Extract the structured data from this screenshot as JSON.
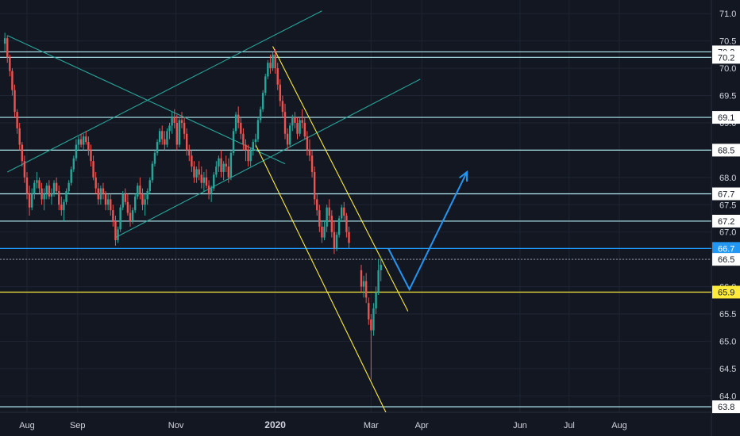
{
  "chart_data": {
    "type": "candlestick",
    "y_axis": {
      "ylim": [
        63.7,
        71.25
      ],
      "ticks": [
        64.0,
        64.5,
        65.0,
        65.5,
        66.0,
        66.5,
        67.0,
        67.5,
        68.0,
        68.5,
        69.0,
        69.5,
        70.0,
        70.5,
        71.0
      ],
      "tick_labels": [
        "64.0",
        "64.5",
        "65.0",
        "65.5",
        "66.0",
        "66.5",
        "67.0",
        "67.5",
        "68.0",
        "68.5",
        "69.0",
        "69.5",
        "70.0",
        "70.5",
        "71.0"
      ],
      "position": "right"
    },
    "x_axis": {
      "labels": [
        {
          "text": "Aug",
          "t": 0.0,
          "bold": false
        },
        {
          "text": "Sep",
          "t": 1.03,
          "bold": false
        },
        {
          "text": "Nov",
          "t": 3.03,
          "bold": false
        },
        {
          "text": "2020",
          "t": 5.05,
          "bold": true
        },
        {
          "text": "Mar",
          "t": 7.0,
          "bold": false
        },
        {
          "text": "Apr",
          "t": 8.03,
          "bold": false
        },
        {
          "text": "Jun",
          "t": 10.03,
          "bold": false
        },
        {
          "text": "Jul",
          "t": 11.03,
          "bold": false
        },
        {
          "text": "Aug",
          "t": 12.05,
          "bold": false
        }
      ]
    },
    "price_levels": [
      {
        "value": 70.3,
        "label": "70.3",
        "color": "#b2ebf2",
        "badge_bg": "#ffffff",
        "badge_fg": "#131722"
      },
      {
        "value": 70.2,
        "label": "70.2",
        "color": "#b2ebf2",
        "badge_bg": "#ffffff",
        "badge_fg": "#131722"
      },
      {
        "value": 69.1,
        "label": "69.1",
        "color": "#b2ebf2",
        "badge_bg": "#ffffff",
        "badge_fg": "#131722"
      },
      {
        "value": 68.5,
        "label": "68.5",
        "color": "#b2ebf2",
        "badge_bg": "#ffffff",
        "badge_fg": "#131722"
      },
      {
        "value": 67.7,
        "label": "67.7",
        "color": "#b2ebf2",
        "badge_bg": "#ffffff",
        "badge_fg": "#131722"
      },
      {
        "value": 67.2,
        "label": "67.2",
        "color": "#b2ebf2",
        "badge_bg": "#ffffff",
        "badge_fg": "#131722"
      },
      {
        "value": 66.7,
        "label": "66.7",
        "color": "#2196f3",
        "badge_bg": "#2196f3",
        "badge_fg": "#ffffff"
      },
      {
        "value": 66.5,
        "label": "66.5",
        "color": "#787b86",
        "badge_bg": "#ffffff",
        "badge_fg": "#131722",
        "dashed": true
      },
      {
        "value": 65.9,
        "label": "65.9",
        "color": "#ffeb3b",
        "badge_bg": "#ffeb3b",
        "badge_fg": "#131722"
      },
      {
        "value": 63.8,
        "label": "63.8",
        "color": "#b2ebf2",
        "badge_bg": "#ffffff",
        "badge_fg": "#131722"
      }
    ],
    "trend_lines": [
      {
        "name": "teal-channel-upper",
        "color": "#26a69a",
        "from": {
          "t": -0.4,
          "y": 68.1
        },
        "to": {
          "t": 6.0,
          "y": 71.05
        }
      },
      {
        "name": "teal-channel-lower",
        "color": "#26a69a",
        "from": {
          "t": 1.8,
          "y": 66.9
        },
        "to": {
          "t": 8.0,
          "y": 69.8
        }
      },
      {
        "name": "teal-descending",
        "color": "#26a69a",
        "from": {
          "t": -0.4,
          "y": 70.6
        },
        "to": {
          "t": 5.25,
          "y": 68.25
        }
      },
      {
        "name": "yellow-channel-upper",
        "color": "#ffeb3b",
        "from": {
          "t": 5.0,
          "y": 70.4
        },
        "to": {
          "t": 7.75,
          "y": 65.55
        }
      },
      {
        "name": "yellow-channel-lower",
        "color": "#ffeb3b",
        "from": {
          "t": 4.65,
          "y": 68.6
        },
        "to": {
          "t": 7.3,
          "y": 63.7
        }
      }
    ],
    "projection_arrow": {
      "color": "#2196f3",
      "points": [
        {
          "t": 7.35,
          "y": 66.7
        },
        {
          "t": 7.78,
          "y": 65.95
        },
        {
          "t": 8.95,
          "y": 68.1
        }
      ]
    },
    "candles": [
      [
        -0.45,
        70.45,
        70.65,
        70.3,
        70.55
      ],
      [
        -0.4,
        70.55,
        70.6,
        70.1,
        70.2
      ],
      [
        -0.35,
        70.2,
        70.25,
        69.85,
        69.95
      ],
      [
        -0.3,
        69.95,
        70.0,
        69.5,
        69.6
      ],
      [
        -0.25,
        69.6,
        69.7,
        69.1,
        69.2
      ],
      [
        -0.2,
        69.2,
        69.25,
        68.8,
        68.9
      ],
      [
        -0.15,
        68.9,
        69.0,
        68.5,
        68.6
      ],
      [
        -0.1,
        68.6,
        68.65,
        68.2,
        68.3
      ],
      [
        -0.05,
        68.3,
        68.4,
        67.9,
        68.0
      ],
      [
        0.0,
        68.0,
        68.1,
        67.6,
        67.7
      ],
      [
        0.05,
        67.7,
        67.85,
        67.3,
        67.45
      ],
      [
        0.1,
        67.45,
        67.8,
        67.4,
        67.7
      ],
      [
        0.15,
        67.7,
        67.95,
        67.6,
        67.9
      ],
      [
        0.2,
        67.9,
        68.1,
        67.8,
        67.95
      ],
      [
        0.25,
        67.95,
        68.0,
        67.7,
        67.8
      ],
      [
        0.3,
        67.8,
        67.9,
        67.5,
        67.6
      ],
      [
        0.35,
        67.6,
        67.8,
        67.4,
        67.7
      ],
      [
        0.4,
        67.7,
        67.9,
        67.6,
        67.85
      ],
      [
        0.45,
        67.85,
        67.95,
        67.6,
        67.65
      ],
      [
        0.5,
        67.65,
        67.8,
        67.5,
        67.7
      ],
      [
        0.55,
        67.7,
        67.95,
        67.65,
        67.9
      ],
      [
        0.6,
        67.9,
        68.0,
        67.7,
        67.75
      ],
      [
        0.65,
        67.75,
        67.85,
        67.4,
        67.5
      ],
      [
        0.7,
        67.5,
        67.65,
        67.3,
        67.4
      ],
      [
        0.75,
        67.4,
        67.6,
        67.2,
        67.55
      ],
      [
        0.8,
        67.55,
        67.8,
        67.5,
        67.75
      ],
      [
        0.85,
        67.75,
        67.95,
        67.7,
        67.9
      ],
      [
        0.9,
        67.9,
        68.2,
        67.85,
        68.15
      ],
      [
        0.95,
        68.15,
        68.4,
        68.1,
        68.35
      ],
      [
        1.0,
        68.35,
        68.7,
        68.3,
        68.6
      ],
      [
        1.05,
        68.6,
        68.75,
        68.5,
        68.7
      ],
      [
        1.1,
        68.7,
        68.8,
        68.55,
        68.6
      ],
      [
        1.15,
        68.6,
        68.8,
        68.5,
        68.75
      ],
      [
        1.2,
        68.75,
        68.85,
        68.6,
        68.65
      ],
      [
        1.25,
        68.65,
        68.75,
        68.4,
        68.5
      ],
      [
        1.3,
        68.5,
        68.6,
        68.2,
        68.3
      ],
      [
        1.35,
        68.3,
        68.4,
        67.95,
        68.0
      ],
      [
        1.4,
        68.0,
        68.1,
        67.7,
        67.8
      ],
      [
        1.45,
        67.8,
        67.9,
        67.5,
        67.6
      ],
      [
        1.5,
        67.6,
        67.85,
        67.5,
        67.8
      ],
      [
        1.55,
        67.8,
        67.9,
        67.6,
        67.7
      ],
      [
        1.6,
        67.7,
        67.75,
        67.4,
        67.5
      ],
      [
        1.65,
        67.5,
        67.7,
        67.4,
        67.6
      ],
      [
        1.7,
        67.6,
        67.7,
        67.3,
        67.4
      ],
      [
        1.75,
        67.4,
        67.5,
        67.1,
        67.2
      ],
      [
        1.8,
        67.2,
        67.3,
        66.75,
        66.85
      ],
      [
        1.85,
        66.85,
        67.1,
        66.8,
        67.05
      ],
      [
        1.9,
        67.05,
        67.5,
        67.0,
        67.45
      ],
      [
        1.95,
        67.45,
        67.75,
        67.4,
        67.7
      ],
      [
        2.0,
        67.7,
        67.8,
        67.5,
        67.55
      ],
      [
        2.05,
        67.55,
        67.7,
        67.3,
        67.35
      ],
      [
        2.1,
        67.35,
        67.5,
        67.1,
        67.2
      ],
      [
        2.15,
        67.2,
        67.45,
        67.15,
        67.4
      ],
      [
        2.2,
        67.4,
        67.7,
        67.35,
        67.65
      ],
      [
        2.25,
        67.65,
        67.9,
        67.6,
        67.85
      ],
      [
        2.3,
        67.85,
        68.0,
        67.6,
        67.7
      ],
      [
        2.35,
        67.7,
        67.8,
        67.4,
        67.5
      ],
      [
        2.4,
        67.5,
        67.7,
        67.3,
        67.6
      ],
      [
        2.45,
        67.6,
        67.8,
        67.5,
        67.75
      ],
      [
        2.5,
        67.75,
        68.0,
        67.7,
        67.95
      ],
      [
        2.55,
        67.95,
        68.3,
        67.9,
        68.25
      ],
      [
        2.6,
        68.25,
        68.5,
        68.2,
        68.45
      ],
      [
        2.65,
        68.45,
        68.7,
        68.4,
        68.65
      ],
      [
        2.7,
        68.65,
        68.9,
        68.6,
        68.85
      ],
      [
        2.75,
        68.85,
        68.95,
        68.6,
        68.7
      ],
      [
        2.8,
        68.7,
        68.85,
        68.5,
        68.6
      ],
      [
        2.85,
        68.6,
        68.9,
        68.55,
        68.85
      ],
      [
        2.9,
        68.85,
        69.0,
        68.7,
        68.95
      ],
      [
        2.95,
        68.95,
        69.2,
        68.8,
        69.1
      ],
      [
        3.0,
        69.1,
        69.25,
        68.9,
        69.0
      ],
      [
        3.05,
        69.0,
        69.15,
        68.5,
        68.6
      ],
      [
        3.1,
        68.6,
        69.1,
        68.55,
        69.05
      ],
      [
        3.15,
        69.05,
        69.2,
        68.9,
        69.0
      ],
      [
        3.2,
        69.0,
        69.1,
        68.7,
        68.8
      ],
      [
        3.25,
        68.8,
        68.9,
        68.4,
        68.5
      ],
      [
        3.3,
        68.5,
        68.6,
        68.3,
        68.4
      ],
      [
        3.35,
        68.4,
        68.5,
        68.1,
        68.2
      ],
      [
        3.4,
        68.2,
        68.3,
        67.9,
        68.0
      ],
      [
        3.45,
        68.0,
        68.2,
        67.9,
        68.15
      ],
      [
        3.5,
        68.15,
        68.3,
        67.95,
        68.05
      ],
      [
        3.55,
        68.05,
        68.2,
        67.8,
        67.9
      ],
      [
        3.6,
        67.9,
        68.1,
        67.75,
        68.0
      ],
      [
        3.65,
        68.0,
        68.15,
        67.8,
        67.85
      ],
      [
        3.7,
        67.85,
        67.95,
        67.6,
        67.7
      ],
      [
        3.75,
        67.7,
        67.85,
        67.55,
        67.8
      ],
      [
        3.8,
        67.8,
        68.1,
        67.75,
        68.05
      ],
      [
        3.85,
        68.05,
        68.3,
        68.0,
        68.2
      ],
      [
        3.9,
        68.2,
        68.4,
        68.1,
        68.35
      ],
      [
        3.95,
        68.35,
        68.5,
        68.0,
        68.1
      ],
      [
        4.0,
        68.1,
        68.3,
        67.95,
        68.25
      ],
      [
        4.05,
        68.25,
        68.4,
        68.1,
        68.2
      ],
      [
        4.1,
        68.2,
        68.35,
        67.9,
        68.0
      ],
      [
        4.15,
        68.0,
        68.5,
        67.95,
        68.45
      ],
      [
        4.2,
        68.45,
        68.9,
        68.4,
        68.85
      ],
      [
        4.25,
        68.85,
        69.2,
        68.8,
        69.15
      ],
      [
        4.3,
        69.15,
        69.3,
        68.9,
        69.0
      ],
      [
        4.35,
        69.0,
        69.1,
        68.7,
        68.8
      ],
      [
        4.4,
        68.8,
        68.9,
        68.5,
        68.6
      ],
      [
        4.45,
        68.6,
        68.7,
        68.3,
        68.5
      ],
      [
        4.5,
        68.5,
        68.6,
        68.2,
        68.3
      ],
      [
        4.55,
        68.3,
        68.55,
        68.2,
        68.5
      ],
      [
        4.6,
        68.5,
        68.7,
        68.4,
        68.65
      ],
      [
        4.65,
        68.65,
        68.8,
        68.55,
        68.7
      ],
      [
        4.7,
        68.7,
        69.1,
        68.65,
        69.05
      ],
      [
        4.75,
        69.05,
        69.3,
        69.0,
        69.25
      ],
      [
        4.8,
        69.25,
        69.6,
        69.2,
        69.55
      ],
      [
        4.85,
        69.55,
        69.9,
        69.5,
        69.85
      ],
      [
        4.9,
        69.85,
        70.15,
        69.8,
        70.1
      ],
      [
        4.95,
        70.1,
        70.25,
        69.9,
        70.0
      ],
      [
        5.0,
        70.0,
        70.3,
        69.95,
        70.25
      ],
      [
        5.05,
        70.25,
        70.35,
        69.9,
        70.0
      ],
      [
        5.1,
        70.0,
        70.1,
        69.6,
        69.7
      ],
      [
        5.15,
        69.7,
        69.8,
        69.3,
        69.4
      ],
      [
        5.2,
        69.4,
        69.5,
        69.1,
        69.2
      ],
      [
        5.25,
        69.2,
        69.35,
        68.7,
        68.8
      ],
      [
        5.3,
        68.8,
        68.9,
        68.5,
        68.6
      ],
      [
        5.35,
        68.6,
        69.0,
        68.55,
        68.95
      ],
      [
        5.4,
        68.95,
        69.15,
        68.85,
        69.1
      ],
      [
        5.45,
        69.1,
        69.2,
        68.9,
        69.0
      ],
      [
        5.5,
        69.0,
        69.1,
        68.7,
        68.8
      ],
      [
        5.55,
        68.8,
        69.1,
        68.75,
        69.05
      ],
      [
        5.6,
        69.05,
        69.25,
        68.9,
        69.0
      ],
      [
        5.65,
        69.0,
        69.1,
        68.7,
        68.75
      ],
      [
        5.7,
        68.75,
        68.85,
        68.4,
        68.5
      ],
      [
        5.75,
        68.5,
        68.7,
        68.3,
        68.4
      ],
      [
        5.8,
        68.4,
        68.5,
        68.0,
        68.1
      ],
      [
        5.85,
        68.1,
        68.2,
        67.5,
        67.6
      ],
      [
        5.9,
        67.6,
        67.7,
        67.3,
        67.4
      ],
      [
        5.95,
        67.4,
        67.5,
        67.0,
        67.1
      ],
      [
        6.0,
        67.1,
        67.2,
        66.8,
        66.9
      ],
      [
        6.05,
        66.9,
        67.2,
        66.85,
        67.1
      ],
      [
        6.1,
        67.1,
        67.5,
        67.0,
        67.45
      ],
      [
        6.15,
        67.45,
        67.6,
        67.2,
        67.3
      ],
      [
        6.2,
        67.3,
        67.4,
        66.9,
        67.0
      ],
      [
        6.25,
        67.0,
        67.2,
        66.6,
        66.7
      ],
      [
        6.3,
        66.7,
        67.0,
        66.65,
        66.95
      ],
      [
        6.35,
        66.95,
        67.3,
        66.9,
        67.25
      ],
      [
        6.4,
        67.25,
        67.5,
        67.2,
        67.45
      ],
      [
        6.45,
        67.45,
        67.55,
        67.2,
        67.3
      ],
      [
        6.5,
        67.3,
        67.35,
        66.9,
        67.0
      ],
      [
        6.55,
        67.0,
        67.1,
        66.7,
        66.8
      ],
      [
        6.8,
        66.3,
        66.4,
        65.9,
        66.0
      ],
      [
        6.85,
        66.0,
        66.2,
        65.8,
        66.1
      ],
      [
        6.9,
        66.1,
        66.25,
        65.7,
        65.8
      ],
      [
        6.95,
        65.7,
        65.8,
        65.3,
        65.4
      ],
      [
        7.0,
        65.4,
        65.5,
        64.3,
        65.2
      ],
      [
        7.05,
        65.2,
        65.7,
        65.1,
        65.6
      ],
      [
        7.1,
        65.6,
        66.0,
        65.5,
        65.9
      ],
      [
        7.15,
        65.9,
        66.5,
        65.85,
        66.3
      ],
      [
        7.2,
        66.3,
        66.55,
        66.1,
        66.4
      ]
    ]
  }
}
